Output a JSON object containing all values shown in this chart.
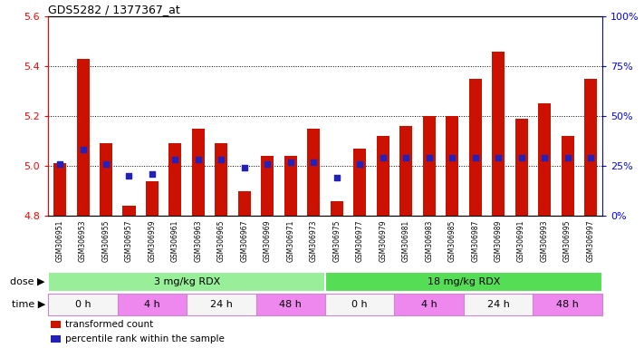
{
  "title": "GDS5282 / 1377367_at",
  "samples": [
    "GSM306951",
    "GSM306953",
    "GSM306955",
    "GSM306957",
    "GSM306959",
    "GSM306961",
    "GSM306963",
    "GSM306965",
    "GSM306967",
    "GSM306969",
    "GSM306971",
    "GSM306973",
    "GSM306975",
    "GSM306977",
    "GSM306979",
    "GSM306981",
    "GSM306983",
    "GSM306985",
    "GSM306987",
    "GSM306989",
    "GSM306991",
    "GSM306993",
    "GSM306995",
    "GSM306997"
  ],
  "transformed_count": [
    5.01,
    5.43,
    5.09,
    4.84,
    4.94,
    5.09,
    5.15,
    5.09,
    4.9,
    5.04,
    5.04,
    5.15,
    4.86,
    5.07,
    5.12,
    5.16,
    5.2,
    5.2,
    5.35,
    5.46,
    5.19,
    5.25,
    5.12,
    5.35
  ],
  "percentile_rank": [
    26,
    33,
    26,
    20,
    21,
    28,
    28,
    28,
    24,
    26,
    27,
    27,
    19,
    26,
    29,
    29,
    29,
    29,
    29,
    29,
    29,
    29,
    29,
    29
  ],
  "ylim_left": [
    4.8,
    5.6
  ],
  "ylim_right": [
    0,
    100
  ],
  "yticks_left": [
    4.8,
    5.0,
    5.2,
    5.4,
    5.6
  ],
  "yticks_right": [
    0,
    25,
    50,
    75,
    100
  ],
  "bar_color": "#cc1100",
  "dot_color": "#2222bb",
  "base_value": 4.8,
  "dose_groups": [
    {
      "label": "3 mg/kg RDX",
      "start": 0,
      "end": 12,
      "color": "#99ee99"
    },
    {
      "label": "18 mg/kg RDX",
      "start": 12,
      "end": 24,
      "color": "#55dd55"
    }
  ],
  "time_groups": [
    {
      "label": "0 h",
      "start": 0,
      "end": 3,
      "color": "#f5f5f5"
    },
    {
      "label": "4 h",
      "start": 3,
      "end": 6,
      "color": "#ee88ee"
    },
    {
      "label": "24 h",
      "start": 6,
      "end": 9,
      "color": "#f5f5f5"
    },
    {
      "label": "48 h",
      "start": 9,
      "end": 12,
      "color": "#ee88ee"
    },
    {
      "label": "0 h",
      "start": 12,
      "end": 15,
      "color": "#f5f5f5"
    },
    {
      "label": "4 h",
      "start": 15,
      "end": 18,
      "color": "#ee88ee"
    },
    {
      "label": "24 h",
      "start": 18,
      "end": 21,
      "color": "#f5f5f5"
    },
    {
      "label": "48 h",
      "start": 21,
      "end": 24,
      "color": "#ee88ee"
    }
  ],
  "dose_label": "dose",
  "time_label": "time",
  "legend_items": [
    {
      "label": "transformed count",
      "color": "#cc1100"
    },
    {
      "label": "percentile rank within the sample",
      "color": "#2222bb"
    }
  ],
  "plot_bg": "#ffffff",
  "xtick_bg": "#e0e0e0",
  "fig_width": 7.11,
  "fig_height": 3.84,
  "dpi": 100
}
